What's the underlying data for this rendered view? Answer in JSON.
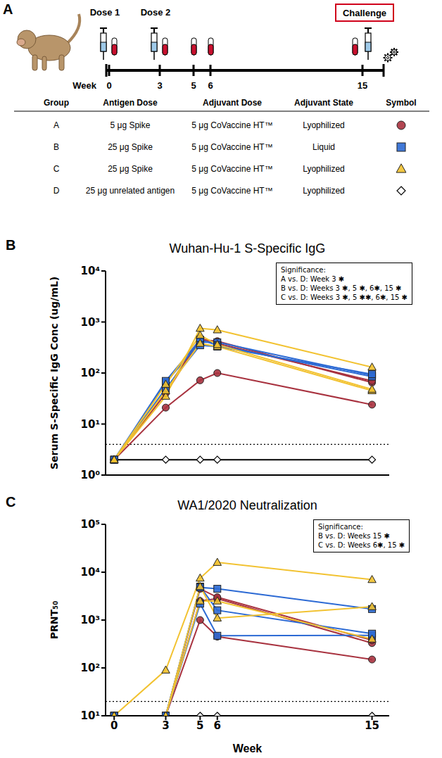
{
  "panel_labels": [
    "A",
    "B",
    "C"
  ],
  "diagram": {
    "timeline": {
      "axis_label": "Week",
      "weeks": [
        0,
        3,
        5,
        6,
        15
      ],
      "doses": [
        {
          "label": "Dose 1",
          "week": 0
        },
        {
          "label": "Dose 2",
          "week": 3
        }
      ],
      "blood_draws": [
        0,
        3,
        5,
        6,
        15
      ],
      "challenge": {
        "label": "Challenge",
        "week": 15
      }
    },
    "table": {
      "columns": [
        "Group",
        "Antigen Dose",
        "Adjuvant Dose",
        "Adjuvant State",
        "Symbol"
      ],
      "rows": [
        [
          "A",
          "5 μg Spike",
          "5 μg CoVaccine HT™",
          "Lyophilized"
        ],
        [
          "B",
          "25 μg Spike",
          "5 μg CoVaccine HT™",
          "Liquid"
        ],
        [
          "C",
          "25 μg Spike",
          "5 μg CoVaccine HT™",
          "Lyophilized"
        ],
        [
          "D",
          "25 μg unrelated antigen",
          "5 μg CoVaccine HT™",
          "Lyophilized"
        ]
      ],
      "symbols": [
        {
          "color": "#a8323f",
          "marker": "circle"
        },
        {
          "color": "#2c6ad4",
          "marker": "square"
        },
        {
          "color": "#f2c230",
          "marker": "triangle"
        },
        {
          "color": "#000000",
          "marker": "open_diamond"
        }
      ]
    }
  },
  "chart_data": [
    {
      "type": "line",
      "title": "Wuhan-Hu-1 S-Specific IgG",
      "y_label": "Serum S-Specific IgG Conc (ug/mL)",
      "x": [
        0,
        3,
        5,
        6,
        15
      ],
      "xlim": [
        -0.5,
        16
      ],
      "xticks": [
        0,
        3,
        5,
        6,
        15
      ],
      "ylim": [
        1,
        10000
      ],
      "yticks": [
        {
          "value": 1,
          "label": "10⁰"
        },
        {
          "value": 10,
          "label": "10¹"
        },
        {
          "value": 100,
          "label": "10²"
        },
        {
          "value": 1000,
          "label": "10³"
        },
        {
          "value": 10000,
          "label": "10⁴"
        }
      ],
      "log": "y",
      "tick_labels": "y",
      "threshold": 4,
      "significance": {
        "title": "Significance:",
        "lines": [
          "A vs. D: Week 3 ✱",
          "B vs. D: Weeks 3 ✱, 5 ✱, 6✱, 15 ✱",
          "C vs. D: Weeks 3 ✱, 5 ✱✱, 6✱, 15 ✱"
        ]
      },
      "series": [
        {
          "name": "D",
          "color": "#000000",
          "marker": "open_diamond",
          "values": [
            2,
            2,
            2,
            2,
            2
          ]
        },
        {
          "name": "A",
          "color": "#a8323f",
          "marker": "circle",
          "values": [
            2,
            21,
            72,
            100,
            24
          ]
        },
        {
          "name": "A",
          "color": "#a8323f",
          "marker": "circle",
          "values": [
            2,
            40,
            450,
            420,
            65
          ]
        },
        {
          "name": "A",
          "color": "#a8323f",
          "marker": "circle",
          "values": [
            2,
            45,
            480,
            380,
            70
          ]
        },
        {
          "name": "B",
          "color": "#2c6ad4",
          "marker": "square",
          "values": [
            2,
            65,
            400,
            400,
            90
          ]
        },
        {
          "name": "B",
          "color": "#2c6ad4",
          "marker": "square",
          "values": [
            2,
            70,
            450,
            350,
            85
          ]
        },
        {
          "name": "B",
          "color": "#2c6ad4",
          "marker": "square",
          "values": [
            2,
            50,
            350,
            330,
            95
          ]
        },
        {
          "name": "C",
          "color": "#f2c230",
          "marker": "triangle",
          "values": [
            2,
            35,
            750,
            700,
            130
          ]
        },
        {
          "name": "C",
          "color": "#f2c230",
          "marker": "triangle",
          "values": [
            2,
            45,
            380,
            330,
            45
          ]
        },
        {
          "name": "C",
          "color": "#f2c230",
          "marker": "triangle",
          "values": [
            2,
            60,
            550,
            360,
            48
          ]
        }
      ]
    },
    {
      "type": "line",
      "title": "WA1/2020 Neutralization",
      "y_label": "PRNT₅₀",
      "x_label": "Week",
      "x": [
        0,
        3,
        5,
        6,
        15
      ],
      "xlim": [
        -0.5,
        16
      ],
      "xticks": [
        0,
        3,
        5,
        6,
        15
      ],
      "ylim": [
        10,
        100000
      ],
      "yticks": [
        {
          "value": 10,
          "label": "10¹"
        },
        {
          "value": 100,
          "label": "10²"
        },
        {
          "value": 1000,
          "label": "10³"
        },
        {
          "value": 10000,
          "label": "10⁴"
        },
        {
          "value": 100000,
          "label": "10⁵"
        }
      ],
      "log": "y",
      "tick_labels": true,
      "threshold": 20,
      "significance": {
        "title": "Significance:",
        "lines": [
          "B vs. D: Weeks 15 ✱",
          "C vs. D: Weeks 6✱, 15 ✱"
        ]
      },
      "series": [
        {
          "name": "D",
          "color": "#000000",
          "marker": "open_diamond",
          "values": [
            10,
            10,
            10,
            10,
            10
          ]
        },
        {
          "name": "A",
          "color": "#a8323f",
          "marker": "circle",
          "values": [
            10,
            10,
            1000,
            450,
            150
          ]
        },
        {
          "name": "A",
          "color": "#a8323f",
          "marker": "circle",
          "values": [
            10,
            10,
            2500,
            2800,
            330
          ]
        },
        {
          "name": "A",
          "color": "#a8323f",
          "marker": "circle",
          "values": [
            10,
            10,
            4500,
            3000,
            380
          ]
        },
        {
          "name": "B",
          "color": "#2c6ad4",
          "marker": "square",
          "values": [
            10,
            10,
            2200,
            470,
            480
          ]
        },
        {
          "name": "B",
          "color": "#2c6ad4",
          "marker": "square",
          "values": [
            10,
            10,
            5000,
            1600,
            520
          ]
        },
        {
          "name": "B",
          "color": "#2c6ad4",
          "marker": "square",
          "values": [
            10,
            10,
            4800,
            4500,
            1700
          ]
        },
        {
          "name": "C",
          "color": "#f2c230",
          "marker": "triangle",
          "values": [
            10,
            90,
            7500,
            16000,
            7000
          ]
        },
        {
          "name": "C",
          "color": "#f2c230",
          "marker": "triangle",
          "values": [
            10,
            10,
            5000,
            1100,
            1900
          ]
        },
        {
          "name": "C",
          "color": "#f2c230",
          "marker": "triangle",
          "values": [
            10,
            10,
            2500,
            2500,
            400
          ]
        }
      ]
    }
  ]
}
